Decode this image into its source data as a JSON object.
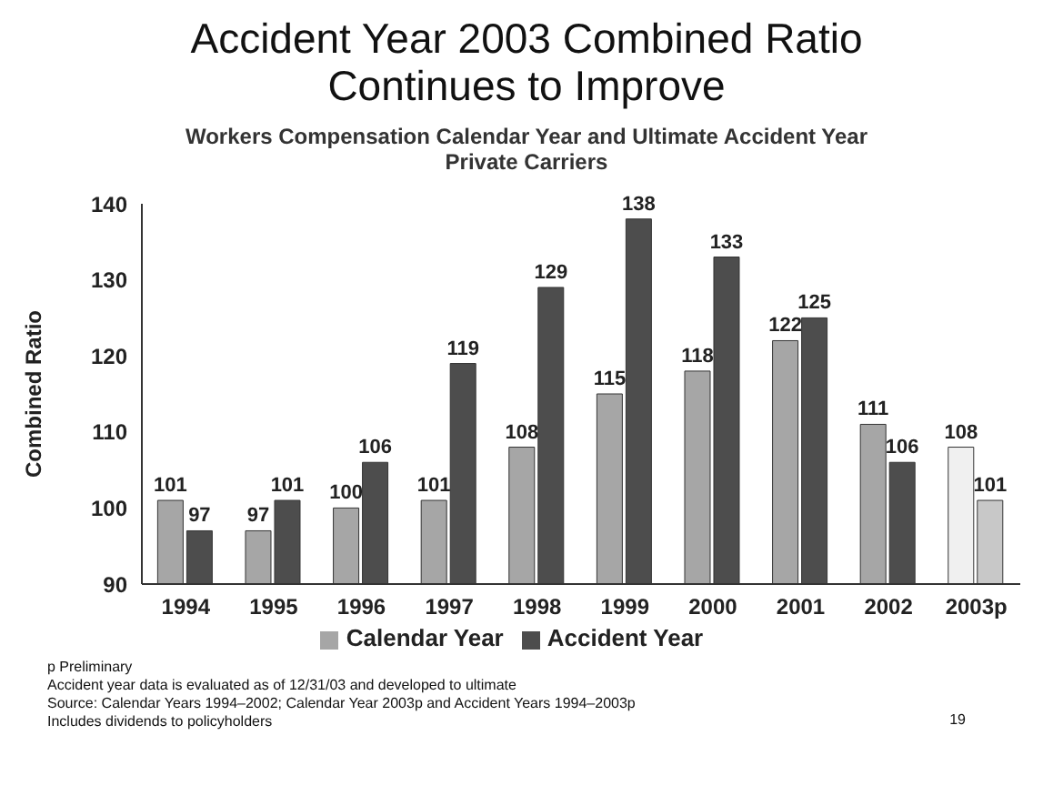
{
  "chart_data": {
    "type": "bar",
    "title": "Accident Year 2003 Combined Ratio Continues to Improve",
    "subtitle": "Workers Compensation Calendar Year and Ultimate Accident Year Private Carriers",
    "ylabel": "Combined Ratio",
    "categories": [
      "1994",
      "1995",
      "1996",
      "1997",
      "1998",
      "1999",
      "2000",
      "2001",
      "2002",
      "2003p"
    ],
    "series": [
      {
        "name": "Calendar Year",
        "color": "#a6a6a6",
        "colors": [
          "#a6a6a6",
          "#a6a6a6",
          "#a6a6a6",
          "#a6a6a6",
          "#a6a6a6",
          "#a6a6a6",
          "#a6a6a6",
          "#a6a6a6",
          "#a6a6a6",
          "#f0f0f0"
        ],
        "values": [
          101,
          97,
          100,
          101,
          108,
          115,
          118,
          122,
          111,
          108
        ]
      },
      {
        "name": "Accident Year",
        "color": "#4d4d4d",
        "colors": [
          "#4d4d4d",
          "#4d4d4d",
          "#4d4d4d",
          "#4d4d4d",
          "#4d4d4d",
          "#4d4d4d",
          "#4d4d4d",
          "#4d4d4d",
          "#4d4d4d",
          "#c8c8c8"
        ],
        "values": [
          97,
          101,
          106,
          119,
          129,
          138,
          133,
          125,
          106,
          101
        ]
      }
    ],
    "ylim": [
      90,
      140
    ],
    "yticks": [
      90,
      100,
      110,
      120,
      130,
      140
    ],
    "grid": false,
    "legend": "bottom",
    "data_labels": true,
    "annotations": [
      "p Preliminary",
      "Accident year data is evaluated as of 12/31/03 and developed to ultimate",
      "Source: Calendar Years 1994–2002; Calendar Year 2003p and Accident Years 1994–2003p",
      "Includes dividends to policyholders",
      "19"
    ]
  }
}
